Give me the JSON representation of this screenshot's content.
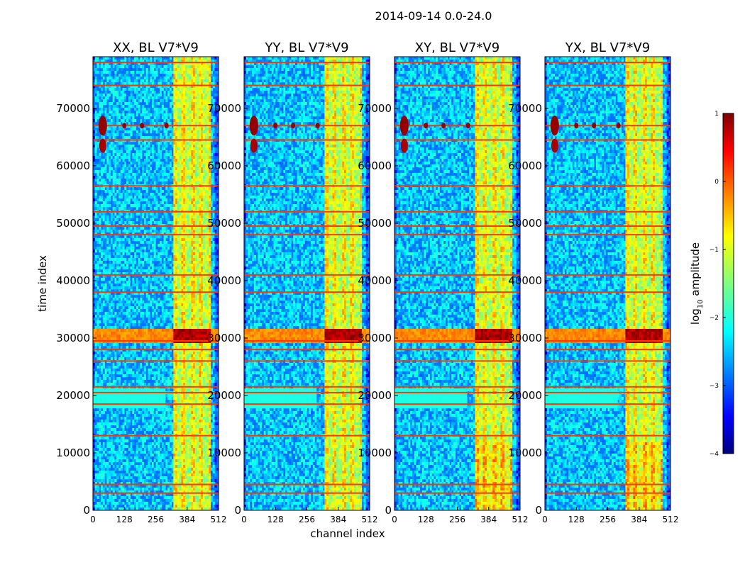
{
  "figure": {
    "suptitle": "2014-09-14 0.0-24.0",
    "xlabel": "channel index",
    "ylabel": "time index"
  },
  "colorbar": {
    "label_prefix": "log",
    "label_sub": "10",
    "label_suffix": " amplitude",
    "range": [
      -4,
      1
    ],
    "ticks": [
      "1",
      "0",
      "−1",
      "−2",
      "−3",
      "−4"
    ],
    "tick_values": [
      1,
      0,
      -1,
      -2,
      -3,
      -4
    ],
    "colormap": [
      "#00007f",
      "#0000ff",
      "#007fff",
      "#00ffff",
      "#7fff7f",
      "#ffff00",
      "#ff7f00",
      "#ff0000",
      "#7f0000"
    ]
  },
  "chart_data": [
    {
      "type": "heatmap",
      "title": "XX, BL V7*V9",
      "xlabel": "channel index",
      "ylabel": "time index",
      "xlim": [
        0,
        512
      ],
      "ylim": [
        0,
        79000
      ],
      "xticks": [
        0,
        128,
        256,
        384,
        512
      ],
      "yticks": [
        0,
        10000,
        20000,
        30000,
        40000,
        50000,
        60000,
        70000
      ],
      "value_units": "log10 amplitude",
      "bright_channel_band": [
        325,
        480
      ],
      "bright_time_band": [
        29000,
        31500
      ],
      "flagged_time_rows": [
        3000,
        4500,
        13000,
        18500,
        20500,
        21500,
        26000,
        28000,
        29500,
        38000,
        41000,
        48000,
        49500,
        52000,
        56500,
        64500,
        67000,
        74000,
        78000
      ],
      "hotspots_channels_at_rfi": [
        40,
        128,
        200,
        300
      ]
    },
    {
      "type": "heatmap",
      "title": "YY, BL V7*V9",
      "xlabel": "channel index",
      "ylabel": "time index",
      "xlim": [
        0,
        512
      ],
      "ylim": [
        0,
        79000
      ],
      "xticks": [
        0,
        128,
        256,
        384,
        512
      ],
      "yticks": [
        0,
        10000,
        20000,
        30000,
        40000,
        50000,
        60000,
        70000
      ],
      "value_units": "log10 amplitude",
      "bright_channel_band": [
        325,
        480
      ],
      "bright_time_band": [
        29000,
        31500
      ],
      "flagged_time_rows": [
        3000,
        4500,
        13000,
        18500,
        20500,
        21500,
        26000,
        28000,
        29500,
        38000,
        41000,
        48000,
        49500,
        52000,
        56500,
        64500,
        67000,
        74000,
        78000
      ],
      "hotspots_channels_at_rfi": [
        40,
        128,
        200,
        300
      ]
    },
    {
      "type": "heatmap",
      "title": "XY, BL V7*V9",
      "xlabel": "channel index",
      "ylabel": "time index",
      "xlim": [
        0,
        512
      ],
      "ylim": [
        0,
        79000
      ],
      "xticks": [
        0,
        128,
        256,
        384,
        512
      ],
      "yticks": [
        0,
        10000,
        20000,
        30000,
        40000,
        50000,
        60000,
        70000
      ],
      "value_units": "log10 amplitude",
      "bright_channel_band": [
        325,
        480
      ],
      "bright_time_band": [
        29000,
        31500
      ],
      "flagged_time_rows": [
        3000,
        4500,
        13000,
        18500,
        20500,
        21500,
        26000,
        28000,
        29500,
        38000,
        41000,
        48000,
        49500,
        52000,
        56500,
        64500,
        67000,
        74000,
        78000
      ],
      "hotspots_channels_at_rfi": [
        40,
        128,
        200,
        300
      ]
    },
    {
      "type": "heatmap",
      "title": "YX, BL V7*V9",
      "xlabel": "channel index",
      "ylabel": "time index",
      "xlim": [
        0,
        512
      ],
      "ylim": [
        0,
        79000
      ],
      "xticks": [
        0,
        128,
        256,
        384,
        512
      ],
      "yticks": [
        0,
        10000,
        20000,
        30000,
        40000,
        50000,
        60000,
        70000
      ],
      "value_units": "log10 amplitude",
      "bright_channel_band": [
        325,
        480
      ],
      "bright_time_band": [
        29000,
        31500
      ],
      "flagged_time_rows": [
        3000,
        4500,
        13000,
        18500,
        20500,
        21500,
        26000,
        28000,
        29500,
        38000,
        41000,
        48000,
        49500,
        52000,
        56500,
        64500,
        67000,
        74000,
        78000
      ],
      "hotspots_channels_at_rfi": [
        40,
        128,
        200,
        300
      ]
    }
  ]
}
